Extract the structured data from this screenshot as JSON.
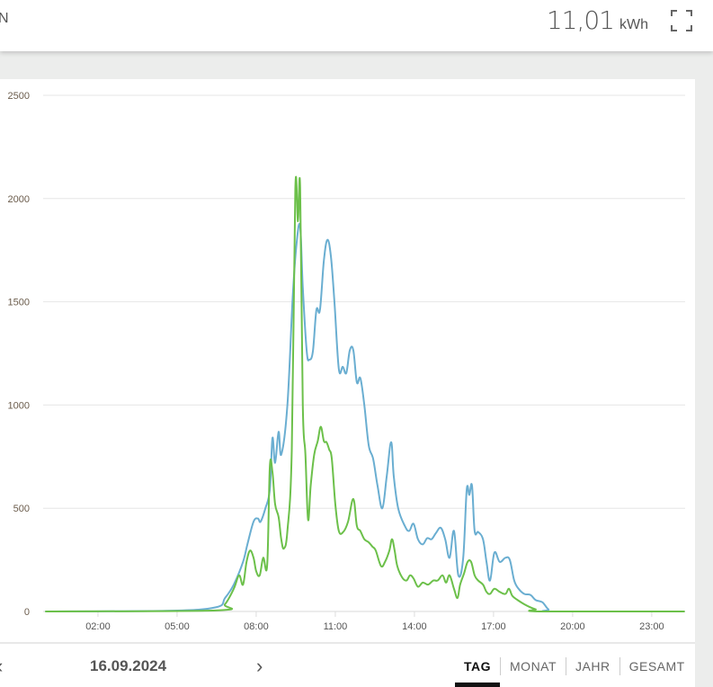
{
  "header": {
    "left_text": "N",
    "total_value": "11,01",
    "total_unit": "kWh",
    "fullscreen_icon": "fullscreen-icon"
  },
  "footer": {
    "date": "16.09.2024",
    "prev_icon": "chevron-left-icon",
    "next_icon": "chevron-right-icon",
    "tabs": [
      {
        "label": "TAG",
        "active": true
      },
      {
        "label": "MONAT",
        "active": false
      },
      {
        "label": "JAHR",
        "active": false
      },
      {
        "label": "GESAMT",
        "active": false
      }
    ]
  },
  "chart_data": {
    "type": "line",
    "xlim": [
      "00:00",
      "24:15"
    ],
    "ylim": [
      0,
      2500
    ],
    "grid": true,
    "x_ticks": [
      "02:00",
      "05:00",
      "08:00",
      "11:00",
      "14:00",
      "17:00",
      "20:00",
      "23:00"
    ],
    "y_ticks": [
      0,
      500,
      1000,
      1500,
      2000,
      2500
    ],
    "series": [
      {
        "color": "#6aaed1",
        "points": [
          [
            "00:00",
            0
          ],
          [
            "04:36",
            3
          ],
          [
            "06:28",
            20
          ],
          [
            "06:49",
            65
          ],
          [
            "07:09",
            130
          ],
          [
            "07:30",
            240
          ],
          [
            "07:40",
            325
          ],
          [
            "07:54",
            435
          ],
          [
            "08:04",
            450
          ],
          [
            "08:10",
            435
          ],
          [
            "08:21",
            500
          ],
          [
            "08:31",
            590
          ],
          [
            "08:37",
            840
          ],
          [
            "08:43",
            720
          ],
          [
            "08:51",
            870
          ],
          [
            "08:57",
            760
          ],
          [
            "09:11",
            1000
          ],
          [
            "09:23",
            1520
          ],
          [
            "09:32",
            1785
          ],
          [
            "09:40",
            1865
          ],
          [
            "09:46",
            1570
          ],
          [
            "09:55",
            1260
          ],
          [
            "10:01",
            1220
          ],
          [
            "10:09",
            1260
          ],
          [
            "10:17",
            1460
          ],
          [
            "10:25",
            1460
          ],
          [
            "10:34",
            1700
          ],
          [
            "10:42",
            1800
          ],
          [
            "10:50",
            1720
          ],
          [
            "10:58",
            1500
          ],
          [
            "11:08",
            1175
          ],
          [
            "11:17",
            1185
          ],
          [
            "11:25",
            1155
          ],
          [
            "11:33",
            1265
          ],
          [
            "11:41",
            1265
          ],
          [
            "11:49",
            1110
          ],
          [
            "11:57",
            1130
          ],
          [
            "12:06",
            1000
          ],
          [
            "12:16",
            805
          ],
          [
            "12:26",
            740
          ],
          [
            "12:36",
            610
          ],
          [
            "12:47",
            500
          ],
          [
            "12:57",
            655
          ],
          [
            "13:07",
            820
          ],
          [
            "13:13",
            655
          ],
          [
            "13:23",
            500
          ],
          [
            "13:38",
            415
          ],
          [
            "13:48",
            390
          ],
          [
            "13:58",
            425
          ],
          [
            "14:08",
            350
          ],
          [
            "14:19",
            325
          ],
          [
            "14:29",
            355
          ],
          [
            "14:39",
            350
          ],
          [
            "14:49",
            380
          ],
          [
            "15:00",
            405
          ],
          [
            "15:10",
            350
          ],
          [
            "15:20",
            260
          ],
          [
            "15:30",
            390
          ],
          [
            "15:40",
            175
          ],
          [
            "15:51",
            260
          ],
          [
            "15:59",
            590
          ],
          [
            "16:05",
            565
          ],
          [
            "16:11",
            610
          ],
          [
            "16:17",
            390
          ],
          [
            "16:25",
            385
          ],
          [
            "16:36",
            350
          ],
          [
            "16:44",
            240
          ],
          [
            "16:52",
            150
          ],
          [
            "17:02",
            285
          ],
          [
            "17:14",
            240
          ],
          [
            "17:27",
            260
          ],
          [
            "17:37",
            250
          ],
          [
            "17:47",
            150
          ],
          [
            "17:57",
            110
          ],
          [
            "18:10",
            85
          ],
          [
            "18:24",
            80
          ],
          [
            "18:36",
            55
          ],
          [
            "18:51",
            45
          ],
          [
            "19:05",
            10
          ],
          [
            "19:19",
            0
          ],
          [
            "24:15",
            0
          ]
        ]
      },
      {
        "color": "#6cc04a",
        "points": [
          [
            "00:00",
            0
          ],
          [
            "06:28",
            5
          ],
          [
            "06:49",
            35
          ],
          [
            "07:09",
            110
          ],
          [
            "07:21",
            175
          ],
          [
            "07:30",
            130
          ],
          [
            "07:38",
            240
          ],
          [
            "07:46",
            295
          ],
          [
            "07:54",
            260
          ],
          [
            "08:00",
            195
          ],
          [
            "08:08",
            175
          ],
          [
            "08:16",
            260
          ],
          [
            "08:25",
            225
          ],
          [
            "08:31",
            700
          ],
          [
            "08:37",
            675
          ],
          [
            "08:43",
            520
          ],
          [
            "08:51",
            457
          ],
          [
            "08:57",
            350
          ],
          [
            "09:03",
            305
          ],
          [
            "09:11",
            390
          ],
          [
            "09:21",
            785
          ],
          [
            "09:29",
            2045
          ],
          [
            "09:35",
            1890
          ],
          [
            "09:40",
            2055
          ],
          [
            "09:46",
            1000
          ],
          [
            "09:52",
            760
          ],
          [
            "09:58",
            445
          ],
          [
            "10:04",
            610
          ],
          [
            "10:12",
            760
          ],
          [
            "10:20",
            825
          ],
          [
            "10:27",
            895
          ],
          [
            "10:34",
            825
          ],
          [
            "10:40",
            820
          ],
          [
            "10:46",
            785
          ],
          [
            "10:52",
            740
          ],
          [
            "11:00",
            520
          ],
          [
            "11:08",
            390
          ],
          [
            "11:18",
            385
          ],
          [
            "11:29",
            435
          ],
          [
            "11:41",
            545
          ],
          [
            "11:49",
            415
          ],
          [
            "11:57",
            390
          ],
          [
            "12:06",
            350
          ],
          [
            "12:16",
            335
          ],
          [
            "12:24",
            315
          ],
          [
            "12:32",
            295
          ],
          [
            "12:44",
            220
          ],
          [
            "12:53",
            240
          ],
          [
            "13:03",
            295
          ],
          [
            "13:09",
            350
          ],
          [
            "13:15",
            295
          ],
          [
            "13:21",
            220
          ],
          [
            "13:32",
            165
          ],
          [
            "13:42",
            150
          ],
          [
            "13:50",
            175
          ],
          [
            "13:58",
            160
          ],
          [
            "14:08",
            120
          ],
          [
            "14:19",
            140
          ],
          [
            "14:31",
            130
          ],
          [
            "14:43",
            150
          ],
          [
            "14:53",
            150
          ],
          [
            "15:04",
            175
          ],
          [
            "15:12",
            140
          ],
          [
            "15:20",
            175
          ],
          [
            "15:30",
            110
          ],
          [
            "15:38",
            65
          ],
          [
            "15:44",
            130
          ],
          [
            "15:53",
            185
          ],
          [
            "16:01",
            240
          ],
          [
            "16:09",
            240
          ],
          [
            "16:17",
            175
          ],
          [
            "16:25",
            150
          ],
          [
            "16:36",
            130
          ],
          [
            "16:44",
            95
          ],
          [
            "16:52",
            85
          ],
          [
            "17:02",
            110
          ],
          [
            "17:14",
            95
          ],
          [
            "17:27",
            85
          ],
          [
            "17:35",
            110
          ],
          [
            "17:43",
            75
          ],
          [
            "17:55",
            55
          ],
          [
            "18:10",
            35
          ],
          [
            "18:24",
            20
          ],
          [
            "18:36",
            10
          ],
          [
            "18:51",
            0
          ],
          [
            "24:15",
            0
          ]
        ]
      }
    ]
  }
}
